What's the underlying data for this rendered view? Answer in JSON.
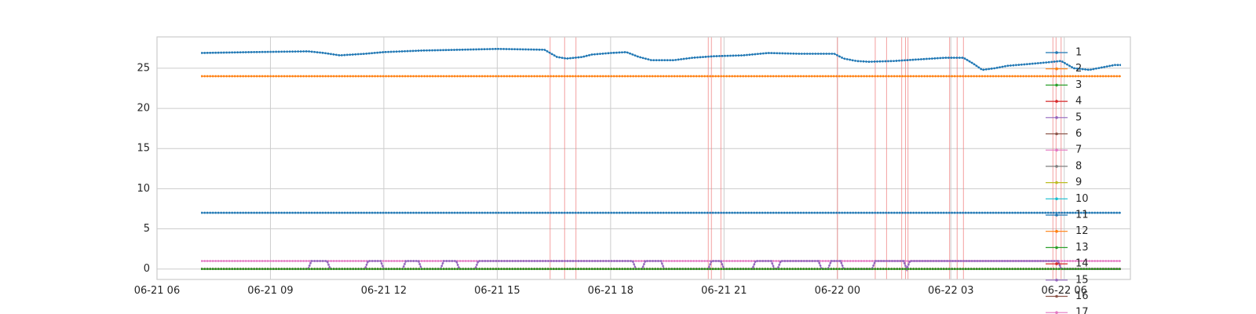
{
  "chart_data": {
    "type": "line",
    "title": "",
    "xlabel": "",
    "ylabel": "",
    "x_range": [
      "2021-06-21 06:00",
      "2021-06-22 07:45"
    ],
    "ylim": [
      -1.3,
      28.9
    ],
    "grid": true,
    "legend_placement": "right",
    "x_ticks": [
      {
        "t": "2021-06-21 06:00",
        "label": "06-21 06"
      },
      {
        "t": "2021-06-21 09:00",
        "label": "06-21 09"
      },
      {
        "t": "2021-06-21 12:00",
        "label": "06-21 12"
      },
      {
        "t": "2021-06-21 15:00",
        "label": "06-21 15"
      },
      {
        "t": "2021-06-21 18:00",
        "label": "06-21 18"
      },
      {
        "t": "2021-06-21 21:00",
        "label": "06-21 21"
      },
      {
        "t": "2021-06-22 00:00",
        "label": "06-22 00"
      },
      {
        "t": "2021-06-22 03:00",
        "label": "06-22 03"
      },
      {
        "t": "2021-06-22 06:00",
        "label": "06-22 06"
      }
    ],
    "y_ticks": [
      {
        "v": 0,
        "label": "0"
      },
      {
        "v": 5,
        "label": "5"
      },
      {
        "v": 10,
        "label": "10"
      },
      {
        "v": 15,
        "label": "15"
      },
      {
        "v": 20,
        "label": "20"
      },
      {
        "v": 25,
        "label": "25"
      }
    ],
    "event_lines": [
      "2021-06-21 16:24",
      "2021-06-21 16:47",
      "2021-06-21 17:05",
      "2021-06-21 20:35",
      "2021-06-21 20:40",
      "2021-06-21 20:55",
      "2021-06-22 00:00",
      "2021-06-22 01:00",
      "2021-06-22 01:18",
      "2021-06-22 01:42",
      "2021-06-22 01:48",
      "2021-06-22 01:52",
      "2021-06-22 02:58",
      "2021-06-22 03:10",
      "2021-06-22 03:20",
      "2021-06-22 05:42",
      "2021-06-22 05:47",
      "2021-06-22 05:55"
    ],
    "series": [
      {
        "name": "1",
        "color": "#1f77b4",
        "points": [
          [
            "2021-06-21 07:10",
            26.9
          ],
          [
            "2021-06-21 08:30",
            27.0
          ],
          [
            "2021-06-21 10:00",
            27.1
          ],
          [
            "2021-06-21 10:25",
            26.9
          ],
          [
            "2021-06-21 10:50",
            26.6
          ],
          [
            "2021-06-21 11:30",
            26.8
          ],
          [
            "2021-06-21 12:00",
            27.0
          ],
          [
            "2021-06-21 13:00",
            27.2
          ],
          [
            "2021-06-21 14:00",
            27.3
          ],
          [
            "2021-06-21 15:00",
            27.4
          ],
          [
            "2021-06-21 16:15",
            27.3
          ],
          [
            "2021-06-21 16:35",
            26.4
          ],
          [
            "2021-06-21 16:50",
            26.2
          ],
          [
            "2021-06-21 17:15",
            26.4
          ],
          [
            "2021-06-21 17:30",
            26.7
          ],
          [
            "2021-06-21 18:00",
            26.9
          ],
          [
            "2021-06-21 18:25",
            27.0
          ],
          [
            "2021-06-21 18:45",
            26.4
          ],
          [
            "2021-06-21 19:05",
            26.0
          ],
          [
            "2021-06-21 19:40",
            26.0
          ],
          [
            "2021-06-21 20:10",
            26.3
          ],
          [
            "2021-06-21 20:45",
            26.5
          ],
          [
            "2021-06-21 21:30",
            26.6
          ],
          [
            "2021-06-21 22:10",
            26.9
          ],
          [
            "2021-06-21 23:00",
            26.8
          ],
          [
            "2021-06-21 23:55",
            26.8
          ],
          [
            "2021-06-22 00:10",
            26.2
          ],
          [
            "2021-06-22 00:30",
            25.9
          ],
          [
            "2021-06-22 00:50",
            25.8
          ],
          [
            "2021-06-22 01:30",
            25.9
          ],
          [
            "2021-06-22 02:10",
            26.1
          ],
          [
            "2021-06-22 02:50",
            26.3
          ],
          [
            "2021-06-22 03:20",
            26.3
          ],
          [
            "2021-06-22 03:35",
            25.6
          ],
          [
            "2021-06-22 03:50",
            24.8
          ],
          [
            "2021-06-22 04:10",
            25.0
          ],
          [
            "2021-06-22 04:30",
            25.3
          ],
          [
            "2021-06-22 05:00",
            25.5
          ],
          [
            "2021-06-22 05:30",
            25.7
          ],
          [
            "2021-06-22 05:55",
            25.9
          ],
          [
            "2021-06-22 06:15",
            25.0
          ],
          [
            "2021-06-22 06:40",
            24.8
          ],
          [
            "2021-06-22 07:00",
            25.1
          ],
          [
            "2021-06-22 07:20",
            25.4
          ],
          [
            "2021-06-22 07:30",
            25.4
          ]
        ]
      },
      {
        "name": "2",
        "color": "#ff7f0e",
        "points": [
          [
            "2021-06-21 07:10",
            24.0
          ],
          [
            "2021-06-22 07:30",
            24.0
          ]
        ]
      },
      {
        "name": "3",
        "color": "#2ca02c",
        "points": [
          [
            "2021-06-21 07:10",
            0
          ],
          [
            "2021-06-22 07:30",
            0
          ]
        ]
      },
      {
        "name": "4",
        "color": "#d62728",
        "points": [
          [
            "2021-06-21 07:10",
            0
          ],
          [
            "2021-06-22 07:30",
            0
          ]
        ]
      },
      {
        "name": "5",
        "color": "#9467bd",
        "points": [
          [
            "2021-06-21 07:10",
            0
          ],
          [
            "2021-06-21 10:00",
            0
          ],
          [
            "2021-06-21 10:05",
            1
          ],
          [
            "2021-06-21 10:30",
            1
          ],
          [
            "2021-06-21 10:35",
            0
          ],
          [
            "2021-06-21 11:30",
            0
          ],
          [
            "2021-06-21 11:35",
            1
          ],
          [
            "2021-06-21 11:55",
            1
          ],
          [
            "2021-06-21 12:00",
            0
          ],
          [
            "2021-06-21 12:30",
            0
          ],
          [
            "2021-06-21 12:35",
            1
          ],
          [
            "2021-06-21 12:55",
            1
          ],
          [
            "2021-06-21 13:00",
            0
          ],
          [
            "2021-06-21 13:30",
            0
          ],
          [
            "2021-06-21 13:35",
            1
          ],
          [
            "2021-06-21 13:55",
            1
          ],
          [
            "2021-06-21 14:00",
            0
          ],
          [
            "2021-06-21 14:25",
            0
          ],
          [
            "2021-06-21 14:30",
            1
          ],
          [
            "2021-06-21 18:35",
            1
          ],
          [
            "2021-06-21 18:40",
            0
          ],
          [
            "2021-06-21 18:50",
            0
          ],
          [
            "2021-06-21 18:55",
            1
          ],
          [
            "2021-06-21 19:20",
            1
          ],
          [
            "2021-06-21 19:25",
            0
          ],
          [
            "2021-06-21 20:35",
            0
          ],
          [
            "2021-06-21 20:40",
            1
          ],
          [
            "2021-06-21 20:55",
            1
          ],
          [
            "2021-06-21 21:00",
            0
          ],
          [
            "2021-06-21 21:45",
            0
          ],
          [
            "2021-06-21 21:50",
            1
          ],
          [
            "2021-06-21 22:15",
            1
          ],
          [
            "2021-06-21 22:20",
            0
          ],
          [
            "2021-06-21 22:25",
            0
          ],
          [
            "2021-06-21 22:30",
            1
          ],
          [
            "2021-06-21 23:30",
            1
          ],
          [
            "2021-06-21 23:35",
            0
          ],
          [
            "2021-06-21 23:45",
            0
          ],
          [
            "2021-06-21 23:50",
            1
          ],
          [
            "2021-06-22 00:05",
            1
          ],
          [
            "2021-06-22 00:10",
            0
          ],
          [
            "2021-06-22 00:55",
            0
          ],
          [
            "2021-06-22 01:00",
            1
          ],
          [
            "2021-06-22 01:45",
            1
          ],
          [
            "2021-06-22 01:50",
            0
          ],
          [
            "2021-06-22 01:55",
            1
          ],
          [
            "2021-06-22 05:50",
            1
          ],
          [
            "2021-06-22 05:55",
            0
          ],
          [
            "2021-06-22 07:30",
            0
          ]
        ]
      },
      {
        "name": "6",
        "color": "#8c564b",
        "points": [
          [
            "2021-06-21 07:10",
            0
          ],
          [
            "2021-06-22 07:30",
            0
          ]
        ]
      },
      {
        "name": "7",
        "color": "#e377c2",
        "points": [
          [
            "2021-06-21 07:10",
            1.0
          ],
          [
            "2021-06-22 07:30",
            1.0
          ]
        ]
      },
      {
        "name": "8",
        "color": "#7f7f7f",
        "points": [
          [
            "2021-06-21 07:10",
            0
          ],
          [
            "2021-06-22 07:30",
            0
          ]
        ]
      },
      {
        "name": "9",
        "color": "#bcbd22",
        "points": [
          [
            "2021-06-21 07:10",
            0
          ],
          [
            "2021-06-22 07:30",
            0
          ]
        ]
      },
      {
        "name": "10",
        "color": "#17becf",
        "points": [
          [
            "2021-06-21 07:10",
            0
          ],
          [
            "2021-06-22 07:30",
            0
          ]
        ]
      },
      {
        "name": "11",
        "color": "#1f77b4",
        "points": [
          [
            "2021-06-21 07:10",
            7.0
          ],
          [
            "2021-06-22 07:30",
            7.0
          ]
        ]
      },
      {
        "name": "12",
        "color": "#ff7f0e",
        "points": [
          [
            "2021-06-21 07:10",
            0
          ],
          [
            "2021-06-22 07:30",
            0
          ]
        ]
      },
      {
        "name": "13",
        "color": "#2ca02c",
        "points": [
          [
            "2021-06-21 07:10",
            0
          ],
          [
            "2021-06-22 07:30",
            0
          ]
        ]
      },
      {
        "name": "14",
        "color": "#d62728",
        "points": [
          [
            "2021-06-21 07:10",
            0
          ],
          [
            "2021-06-22 07:30",
            0
          ]
        ]
      },
      {
        "name": "15",
        "color": "#9467bd",
        "points": [
          [
            "2021-06-21 07:10",
            0
          ],
          [
            "2021-06-22 07:30",
            0
          ]
        ]
      },
      {
        "name": "16",
        "color": "#8c564b",
        "points": [
          [
            "2021-06-21 07:10",
            0
          ],
          [
            "2021-06-22 07:30",
            0
          ]
        ]
      },
      {
        "name": "17",
        "color": "#e377c2",
        "points": [
          [
            "2021-06-21 07:10",
            0
          ],
          [
            "2021-06-22 07:30",
            0
          ]
        ]
      }
    ]
  }
}
